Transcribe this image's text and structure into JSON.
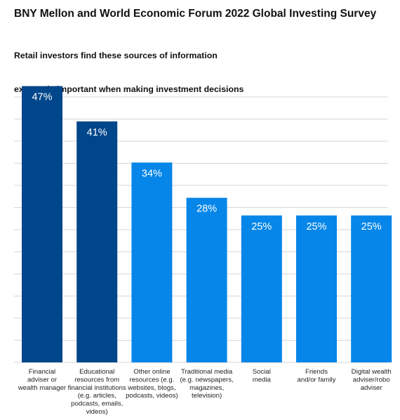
{
  "title": "BNY Mellon and World Economic Forum 2022 Global Investing Survey",
  "subtitle_lines": [
    "Retail investors find these sources of information",
    "extremely important when making investment decisions"
  ],
  "colors": {
    "dark_bar": "#00468b",
    "light_bar": "#0586e8",
    "grid": "#d6d6d6",
    "value_label": "#ffffff"
  },
  "chart_data": {
    "type": "bar",
    "categories": [
      [
        "Financial",
        "adviser or",
        "wealth manager"
      ],
      [
        "Educational",
        "resources from",
        "financial institutions",
        "(e.g. articles,",
        "podcasts, emails,",
        "videos)"
      ],
      [
        "Other online",
        "resources (e.g.",
        "websites, blogs,",
        "podcasts, videos)"
      ],
      [
        "Traditional media",
        "(e.g. newspapers,",
        "magazines,",
        "television)"
      ],
      [
        "Social",
        "media"
      ],
      [
        "Friends",
        "and/or family"
      ],
      [
        "Digital wealth",
        "adviser/robo",
        "adviser"
      ]
    ],
    "values": [
      47,
      41,
      34,
      28,
      25,
      25,
      25
    ],
    "value_labels": [
      "47%",
      "41%",
      "34%",
      "28%",
      "25%",
      "25%",
      "25%"
    ],
    "bar_colors": [
      "#00468b",
      "#00468b",
      "#0586e8",
      "#0586e8",
      "#0586e8",
      "#0586e8",
      "#0586e8"
    ],
    "ylim": [
      0,
      50
    ],
    "grid": true,
    "legend": "none"
  }
}
